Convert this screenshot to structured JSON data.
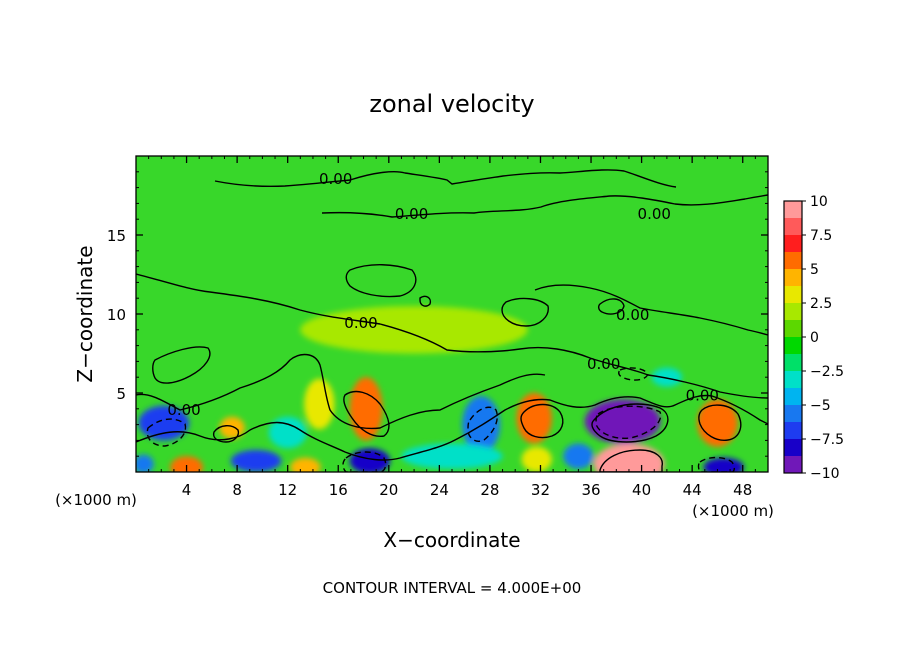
{
  "chart_data": {
    "type": "heatmap",
    "title": "zonal velocity",
    "xlabel": "X−coordinate",
    "ylabel": "Z−coordinate",
    "x_unit_left": "(×1000 m)",
    "x_unit_right": "(×1000 m)",
    "xlim": [
      0,
      50
    ],
    "ylim": [
      0,
      20
    ],
    "x_ticks": [
      4,
      8,
      12,
      16,
      20,
      24,
      28,
      32,
      36,
      40,
      44,
      48
    ],
    "x_tick_labels": [
      "4",
      "8",
      "12",
      "16",
      "20",
      "24",
      "28",
      "32",
      "36",
      "40",
      "44",
      "48"
    ],
    "y_ticks": [
      5,
      10,
      15
    ],
    "y_tick_labels": [
      "5",
      "10",
      "15"
    ],
    "contour_interval_text": "CONTOUR INTERVAL = 4.000E+00",
    "contour_labels": [
      {
        "text": "0.00",
        "x": 15.8,
        "y": 18.5
      },
      {
        "text": "0.00",
        "x": 21.8,
        "y": 16.3
      },
      {
        "text": "0.00",
        "x": 41.0,
        "y": 16.3
      },
      {
        "text": "0.00",
        "x": 17.8,
        "y": 9.4
      },
      {
        "text": "0.00",
        "x": 39.3,
        "y": 9.9
      },
      {
        "text": "0.00",
        "x": 37.0,
        "y": 6.8
      },
      {
        "text": "0.00",
        "x": 3.8,
        "y": 3.9
      },
      {
        "text": "0.00",
        "x": 44.8,
        "y": 4.8
      }
    ],
    "field_anomalies": [
      {
        "x": 39,
        "y": 0.5,
        "value": 9,
        "rx": 2.8,
        "ry": 1.3
      },
      {
        "x": 31.5,
        "y": 3.4,
        "value": 6,
        "rx": 1.4,
        "ry": 1.6
      },
      {
        "x": 18.2,
        "y": 4.0,
        "value": 5.5,
        "rx": 1.3,
        "ry": 2.0
      },
      {
        "x": 46,
        "y": 3.1,
        "value": 5.5,
        "rx": 1.6,
        "ry": 1.5
      },
      {
        "x": 7.6,
        "y": 2.8,
        "value": 4.5,
        "rx": 1.0,
        "ry": 0.7
      },
      {
        "x": 4.0,
        "y": 0.3,
        "value": 5.5,
        "rx": 1.3,
        "ry": 0.7
      },
      {
        "x": 13.4,
        "y": 0.3,
        "value": 4.5,
        "rx": 1.2,
        "ry": 0.6
      },
      {
        "x": 31.7,
        "y": 0.8,
        "value": 3.5,
        "rx": 1.2,
        "ry": 0.8
      },
      {
        "x": 14.5,
        "y": 4.3,
        "value": 3.0,
        "rx": 1.2,
        "ry": 1.6
      },
      {
        "x": 22,
        "y": 9.0,
        "value": 1.5,
        "rx": 9,
        "ry": 1.5
      },
      {
        "x": 38.5,
        "y": 3.2,
        "value": -9,
        "rx": 3.0,
        "ry": 1.4
      },
      {
        "x": 18.5,
        "y": 0.7,
        "value": -8,
        "rx": 1.6,
        "ry": 0.8
      },
      {
        "x": 46.5,
        "y": 0.3,
        "value": -8,
        "rx": 1.6,
        "ry": 0.6
      },
      {
        "x": 9.5,
        "y": 0.7,
        "value": -6.5,
        "rx": 2.0,
        "ry": 0.7
      },
      {
        "x": 2.2,
        "y": 3.1,
        "value": -6.5,
        "rx": 2.0,
        "ry": 1.1
      },
      {
        "x": 27.3,
        "y": 3.0,
        "value": -5,
        "rx": 1.5,
        "ry": 1.8
      },
      {
        "x": 35.0,
        "y": 1.0,
        "value": -5,
        "rx": 1.2,
        "ry": 0.8
      },
      {
        "x": 0.6,
        "y": 0.5,
        "value": -5.5,
        "rx": 0.8,
        "ry": 0.6
      },
      {
        "x": 25,
        "y": 1.0,
        "value": -2.5,
        "rx": 4,
        "ry": 0.8
      },
      {
        "x": 12,
        "y": 2.5,
        "value": -3,
        "rx": 1.5,
        "ry": 1.0
      },
      {
        "x": 42,
        "y": 6.0,
        "value": -2.5,
        "rx": 1.2,
        "ry": 0.6
      }
    ],
    "colorbar": {
      "min": -10,
      "max": 10,
      "tick_labels": [
        "10",
        "7.5",
        "5",
        "2.5",
        "0",
        "−2.5",
        "−5",
        "−7.5",
        "−10"
      ],
      "tick_values": [
        10,
        7.5,
        5,
        2.5,
        0,
        -2.5,
        -5,
        -7.5,
        -10
      ],
      "colors_top_to_bottom": [
        "#ff9a9a",
        "#ff5a5a",
        "#ff1e1e",
        "#ff6c00",
        "#ffb400",
        "#e8e800",
        "#a8e800",
        "#5cd800",
        "#00d800",
        "#00e068",
        "#00e0c8",
        "#00b4f0",
        "#1878f0",
        "#1e3cf0",
        "#1800c8",
        "#7018b8"
      ]
    }
  }
}
